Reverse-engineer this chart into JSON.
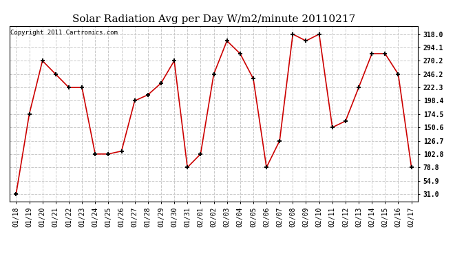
{
  "title": "Solar Radiation Avg per Day W/m2/minute 20110217",
  "copyright": "Copyright 2011 Cartronics.com",
  "dates": [
    "01/18",
    "01/19",
    "01/20",
    "01/21",
    "01/22",
    "01/23",
    "01/24",
    "01/25",
    "01/26",
    "01/27",
    "01/28",
    "01/29",
    "01/30",
    "01/31",
    "02/01",
    "02/02",
    "02/03",
    "02/04",
    "02/05",
    "02/06",
    "02/07",
    "02/08",
    "02/09",
    "02/10",
    "02/11",
    "02/12",
    "02/13",
    "02/14",
    "02/15",
    "02/16",
    "02/17"
  ],
  "values": [
    31.0,
    174.5,
    270.2,
    246.2,
    222.3,
    222.3,
    102.8,
    102.8,
    108.0,
    198.4,
    209.0,
    230.0,
    270.2,
    78.8,
    102.8,
    246.2,
    306.0,
    283.0,
    238.0,
    78.8,
    126.7,
    318.0,
    306.0,
    318.0,
    150.6,
    162.0,
    222.3,
    283.0,
    283.0,
    246.2,
    78.8
  ],
  "line_color": "#cc0000",
  "marker": "+",
  "marker_size": 4,
  "marker_edge_width": 1.5,
  "line_width": 1.2,
  "bg_color": "#ffffff",
  "grid_color": "#c8c8c8",
  "yticks": [
    31.0,
    54.9,
    78.8,
    102.8,
    126.7,
    150.6,
    174.5,
    198.4,
    222.3,
    246.2,
    270.2,
    294.1,
    318.0
  ],
  "ymin": 18.0,
  "ymax": 333.0,
  "title_fontsize": 11,
  "copyright_fontsize": 6.5,
  "tick_fontsize": 7,
  "ytick_fontsize": 7
}
